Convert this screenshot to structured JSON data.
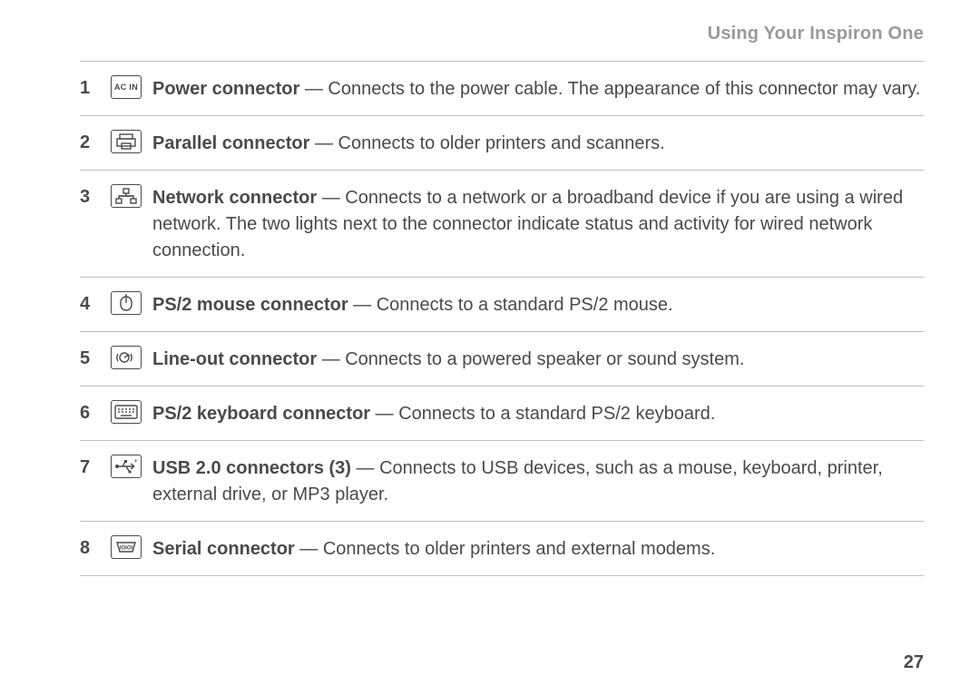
{
  "header": {
    "title": "Using Your Inspiron One"
  },
  "page_number": "27",
  "items": [
    {
      "num": "1",
      "icon": "ac-in",
      "icon_text": "AC IN",
      "bold": "Power connector",
      "rest": " — Connects to the power cable. The appearance of this connector may vary."
    },
    {
      "num": "2",
      "icon": "parallel",
      "bold": "Parallel connector",
      "rest": " — Connects to older printers and scanners."
    },
    {
      "num": "3",
      "icon": "network",
      "bold": "Network connector",
      "rest": " — Connects to a network or a broadband device if you are using a wired network. The two lights next to the connector indicate status and activity for wired network connection."
    },
    {
      "num": "4",
      "icon": "mouse",
      "bold": "PS/2 mouse connector",
      "rest": " — Connects to a standard PS/2 mouse."
    },
    {
      "num": "5",
      "icon": "lineout",
      "bold": "Line-out connector",
      "rest": " — Connects to a powered speaker or sound system."
    },
    {
      "num": "6",
      "icon": "keyboard",
      "bold": "PS/2 keyboard connector",
      "rest": " — Connects to a standard PS/2 keyboard."
    },
    {
      "num": "7",
      "icon": "usb",
      "bold": "USB 2.0 connectors (3)",
      "rest": " — Connects to USB devices, such as a mouse, keyboard, printer, external drive, or MP3 player."
    },
    {
      "num": "8",
      "icon": "serial",
      "bold": "Serial connector",
      "rest": " — Connects to older printers and external modems."
    }
  ]
}
